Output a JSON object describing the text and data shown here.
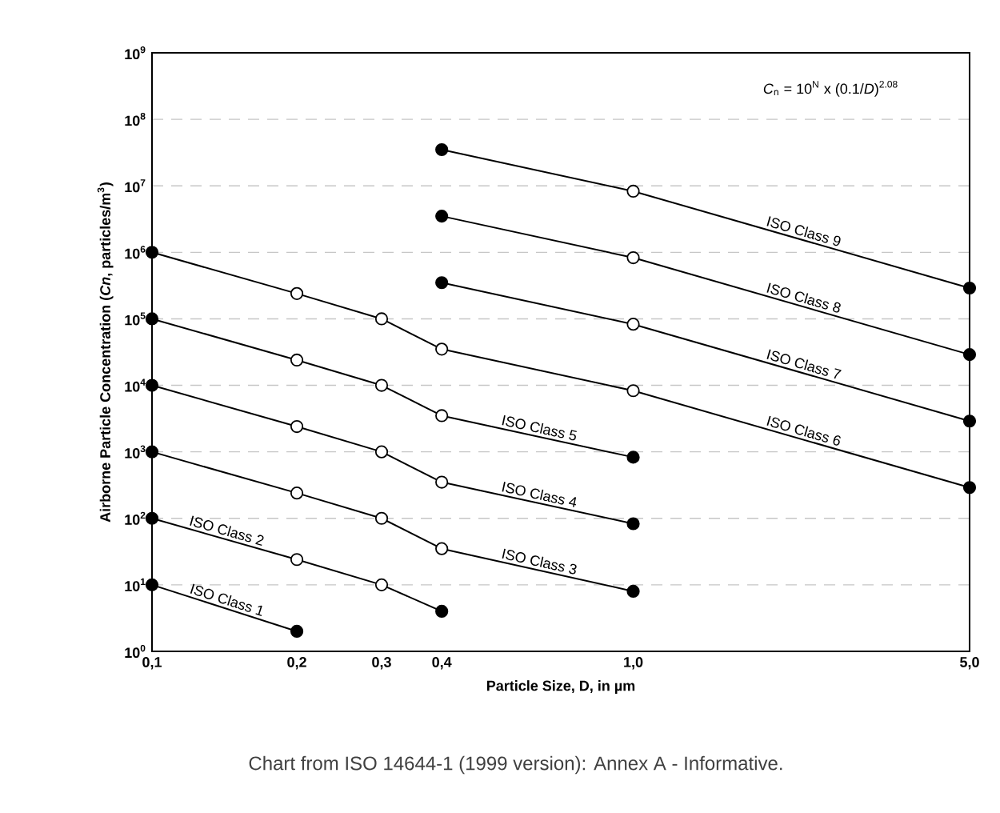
{
  "chart_data": {
    "type": "line",
    "log": "xy",
    "grid": "y",
    "marker": "circle",
    "xlabel": "Particle Size, D, in µm",
    "ylabel": "Airborne Particle Concentration (*Cn*, particles/m$^{3}$)",
    "annotations": [
      "*C*$_{n}$ = 10$^{N}$ x (0.1/*D*)$^{2.08}$",
      "Chart from ISO 14644-1 (1999 version): Annex A - Informative."
    ],
    "xlim": [
      0.1,
      5
    ],
    "ylim": [
      1,
      1000000000
    ],
    "xticks": [
      {
        "value": 0.1,
        "label": "0,1"
      },
      {
        "value": 0.2,
        "label": "0,2"
      },
      {
        "value": 0.3,
        "label": "0,3"
      },
      {
        "value": 0.4,
        "label": "0,4"
      },
      {
        "value": 1,
        "label": "1,0"
      },
      {
        "value": 5,
        "label": "5,0"
      }
    ],
    "yticks": [
      {
        "value": 1,
        "label": "10$^{0}$"
      },
      {
        "value": 10,
        "label": "10$^{1}$"
      },
      {
        "value": 100,
        "label": "10$^{2}$"
      },
      {
        "value": 1000,
        "label": "10$^{3}$"
      },
      {
        "value": 10000,
        "label": "10$^{4}$"
      },
      {
        "value": 100000,
        "label": "10$^{5}$"
      },
      {
        "value": 1000000,
        "label": "10$^{6}$"
      },
      {
        "value": 10000000,
        "label": "10$^{7}$"
      },
      {
        "value": 100000000,
        "label": "10$^{8}$"
      },
      {
        "value": 1000000000,
        "label": "10$^{9}$"
      }
    ],
    "series": [
      {
        "name": "ISO Class 1",
        "color": "#000000",
        "x": [
          0.1,
          0.2
        ],
        "values": [
          10,
          2
        ],
        "colors": [
          "#000000",
          "#000000"
        ]
      },
      {
        "name": "ISO Class 2",
        "color": "#000000",
        "x": [
          0.1,
          0.2,
          0.3,
          0.4
        ],
        "values": [
          100,
          24,
          10,
          4
        ],
        "colors": [
          "#000000",
          "#ffffff",
          "#ffffff",
          "#000000"
        ]
      },
      {
        "name": "ISO Class 3",
        "color": "#000000",
        "x": [
          0.1,
          0.2,
          0.3,
          0.4,
          1
        ],
        "values": [
          1000,
          240,
          100,
          35,
          8
        ],
        "colors": [
          "#000000",
          "#ffffff",
          "#ffffff",
          "#ffffff",
          "#000000"
        ]
      },
      {
        "name": "ISO Class 4",
        "color": "#000000",
        "x": [
          0.1,
          0.2,
          0.3,
          0.4,
          1
        ],
        "values": [
          10000,
          2400,
          1000,
          350,
          83
        ],
        "colors": [
          "#000000",
          "#ffffff",
          "#ffffff",
          "#ffffff",
          "#000000"
        ]
      },
      {
        "name": "ISO Class 5",
        "color": "#000000",
        "x": [
          0.1,
          0.2,
          0.3,
          0.4,
          1
        ],
        "values": [
          100000,
          24000,
          10000,
          3500,
          830
        ],
        "colors": [
          "#000000",
          "#ffffff",
          "#ffffff",
          "#ffffff",
          "#000000"
        ]
      },
      {
        "name": "ISO Class 6",
        "color": "#000000",
        "x": [
          0.1,
          0.2,
          0.3,
          0.4,
          1,
          5
        ],
        "values": [
          1000000,
          240000,
          100000,
          35000,
          8300,
          290
        ],
        "colors": [
          "#000000",
          "#ffffff",
          "#ffffff",
          "#ffffff",
          "#ffffff",
          "#000000"
        ]
      },
      {
        "name": "ISO Class 7",
        "color": "#000000",
        "x": [
          0.4,
          1,
          5
        ],
        "values": [
          350000,
          83000,
          2900
        ],
        "colors": [
          "#000000",
          "#ffffff",
          "#000000"
        ]
      },
      {
        "name": "ISO Class 8",
        "color": "#000000",
        "x": [
          0.4,
          1,
          5
        ],
        "values": [
          3500000,
          830000,
          29000
        ],
        "colors": [
          "#000000",
          "#ffffff",
          "#000000"
        ]
      },
      {
        "name": "ISO Class 9",
        "color": "#000000",
        "x": [
          0.4,
          1,
          5
        ],
        "values": [
          35000000,
          8300000,
          290000
        ],
        "colors": [
          "#000000",
          "#ffffff",
          "#000000"
        ]
      }
    ]
  }
}
